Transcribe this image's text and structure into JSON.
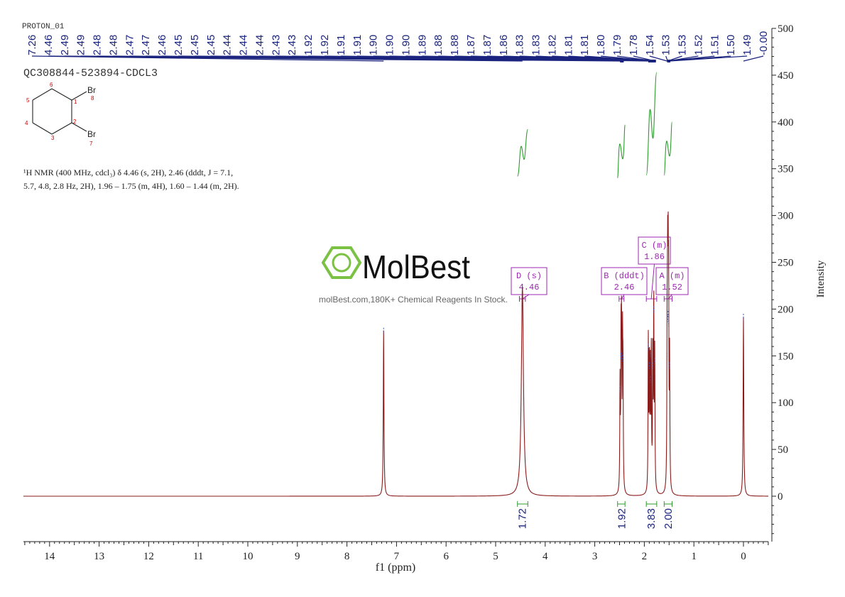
{
  "chart_data": {
    "type": "line",
    "spectrum_label": "PROTON_01",
    "sample_id": "QC308844-523894-CDCL3",
    "nmr_text_line1": "¹H NMR (400 MHz, cdcl₃) δ 4.46 (s, 2H), 2.46 (dddt, J = 7.1,",
    "nmr_text_line2": "5.7, 4.8, 2.8 Hz, 2H), 1.96 – 1.75 (m, 4H), 1.60 – 1.44 (m, 2H).",
    "xlabel": "f1 (ppm)",
    "ylabel": "Intensity",
    "xlim": [
      14.6,
      -0.5
    ],
    "ylim": [
      -47,
      505
    ],
    "x_ticks": [
      14,
      13,
      12,
      11,
      10,
      9,
      8,
      7,
      6,
      5,
      4,
      3,
      2,
      1,
      0
    ],
    "y_ticks": [
      0,
      50,
      100,
      150,
      200,
      250,
      300,
      350,
      400,
      450,
      500
    ],
    "peak_labels": [
      "7.26",
      "4.46",
      "2.49",
      "2.49",
      "2.48",
      "2.48",
      "2.47",
      "2.47",
      "2.46",
      "2.45",
      "2.45",
      "2.45",
      "2.44",
      "2.44",
      "2.44",
      "2.43",
      "2.43",
      "1.92",
      "1.92",
      "1.91",
      "1.91",
      "1.90",
      "1.90",
      "1.90",
      "1.89",
      "1.88",
      "1.88",
      "1.87",
      "1.87",
      "1.86",
      "1.83",
      "1.83",
      "1.82",
      "1.81",
      "1.81",
      "1.80",
      "1.79",
      "1.78",
      "1.54",
      "1.53",
      "1.53",
      "1.52",
      "1.51",
      "1.50",
      "1.49",
      "-0.00"
    ],
    "peaks": [
      {
        "x": 7.26,
        "height": 177,
        "width": 0.008
      },
      {
        "x": 4.46,
        "height": 224,
        "width": 0.025
      },
      {
        "x": 2.49,
        "height": 115,
        "width": 0.006
      },
      {
        "x": 2.47,
        "height": 150,
        "width": 0.006
      },
      {
        "x": 2.46,
        "height": 152,
        "width": 0.006
      },
      {
        "x": 2.44,
        "height": 148,
        "width": 0.006
      },
      {
        "x": 2.43,
        "height": 112,
        "width": 0.006
      },
      {
        "x": 1.92,
        "height": 160,
        "width": 0.006
      },
      {
        "x": 1.9,
        "height": 140,
        "width": 0.006
      },
      {
        "x": 1.88,
        "height": 125,
        "width": 0.006
      },
      {
        "x": 1.86,
        "height": 150,
        "width": 0.006
      },
      {
        "x": 1.83,
        "height": 140,
        "width": 0.006
      },
      {
        "x": 1.81,
        "height": 200,
        "width": 0.006
      },
      {
        "x": 1.79,
        "height": 145,
        "width": 0.006
      },
      {
        "x": 1.54,
        "height": 150,
        "width": 0.006
      },
      {
        "x": 1.53,
        "height": 190,
        "width": 0.006
      },
      {
        "x": 1.52,
        "height": 195,
        "width": 0.006
      },
      {
        "x": 1.51,
        "height": 185,
        "width": 0.006
      },
      {
        "x": 1.49,
        "height": 140,
        "width": 0.006
      },
      {
        "x": 0.0,
        "height": 192,
        "width": 0.008
      }
    ],
    "integrals": [
      {
        "label": "1.72",
        "x": 4.46,
        "from": 4.56,
        "to": 4.35,
        "y_start": 342,
        "y_end": 392
      },
      {
        "label": "1.92",
        "x": 2.46,
        "from": 2.54,
        "to": 2.39,
        "y_start": 340,
        "y_end": 397
      },
      {
        "label": "3.83",
        "x": 1.86,
        "from": 1.96,
        "to": 1.75,
        "y_start": 343,
        "y_end": 453
      },
      {
        "label": "2.00",
        "x": 1.52,
        "from": 1.6,
        "to": 1.44,
        "y_start": 343,
        "y_end": 400
      }
    ],
    "multiplets": [
      {
        "letter": "D (s)",
        "shift": "4.46",
        "x": 4.46,
        "from": 4.52,
        "to": 4.4
      },
      {
        "letter": "B (dddt)",
        "shift": "2.46",
        "x": 2.46,
        "from": 2.51,
        "to": 2.41
      },
      {
        "letter": "C (m)",
        "shift": "1.86",
        "x": 1.86,
        "from": 1.96,
        "to": 1.75
      },
      {
        "letter": "A (m)",
        "shift": "1.52",
        "x": 1.52,
        "from": 1.6,
        "to": 1.44
      }
    ],
    "colors": {
      "spectrum": "#8b1a1a",
      "peak_label": "#1a237e",
      "integral": "#2e9b2e",
      "multiplet": "#9c27b0",
      "axis": "#222222",
      "atom_number": "#cc0000"
    }
  },
  "structure": {
    "atoms": [
      "1",
      "2",
      "3",
      "4",
      "5",
      "6",
      "7",
      "8"
    ],
    "substituents": [
      "Br",
      "Br"
    ]
  },
  "watermark": {
    "brand": "MolBest",
    "tagline": "molBest.com,180K+ Chemical Reagents In Stock.",
    "color": "#7bc143"
  }
}
